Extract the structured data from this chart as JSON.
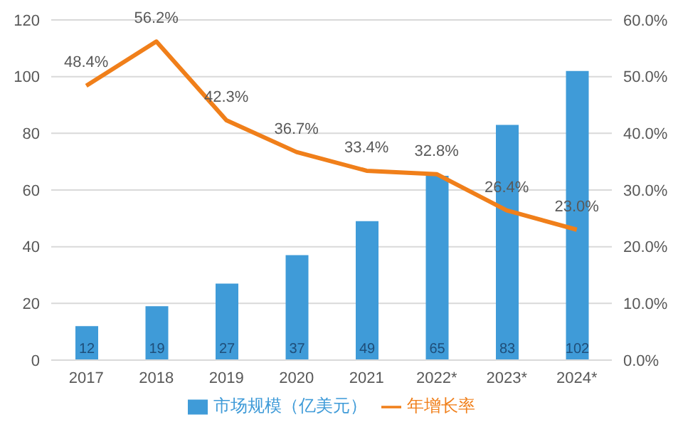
{
  "chart_data": {
    "type": "bar",
    "categories": [
      "2017",
      "2018",
      "2019",
      "2020",
      "2021",
      "2022*",
      "2023*",
      "2024*"
    ],
    "series": [
      {
        "name": "市场规模（亿美元）",
        "color": "#3f9bd8",
        "values": [
          12,
          19,
          27,
          37,
          49,
          65,
          83,
          102
        ],
        "value_labels": [
          "12",
          "19",
          "27",
          "37",
          "49",
          "65",
          "83",
          "102"
        ]
      },
      {
        "name": "年增长率",
        "type": "line",
        "axis": "y2",
        "color": "#f07f1a",
        "values": [
          48.4,
          56.2,
          42.3,
          36.7,
          33.4,
          32.8,
          26.4,
          23.0
        ],
        "value_labels": [
          "48.4%",
          "56.2%",
          "42.3%",
          "36.7%",
          "33.4%",
          "32.8%",
          "26.4%",
          "23.0%"
        ]
      }
    ],
    "ylim": [
      0,
      120
    ],
    "yticks": [
      0,
      20,
      40,
      60,
      80,
      100,
      120
    ],
    "y2lim": [
      0,
      60
    ],
    "y2ticks": [
      {
        "value": 0,
        "label": "0.0%"
      },
      {
        "value": 10,
        "label": "10.0%"
      },
      {
        "value": 20,
        "label": "20.0%"
      },
      {
        "value": 30,
        "label": "30.0%"
      },
      {
        "value": 40,
        "label": "40.0%"
      },
      {
        "value": 50,
        "label": "50.0%"
      },
      {
        "value": 60,
        "label": "60.0%"
      }
    ],
    "grid": "y",
    "legend": "bottom",
    "marker": "none"
  }
}
